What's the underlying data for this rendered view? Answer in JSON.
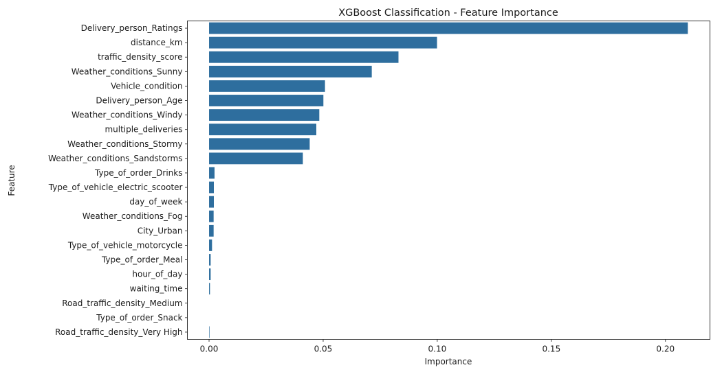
{
  "chart_data": {
    "type": "bar",
    "orientation": "horizontal",
    "title": "XGBoost Classification - Feature Importance",
    "xlabel": "Importance",
    "ylabel": "Feature",
    "xlim": [
      -0.0095,
      0.2195
    ],
    "xticks": [
      0.0,
      0.05,
      0.1,
      0.15,
      0.2
    ],
    "xtick_labels": [
      "0.00",
      "0.05",
      "0.10",
      "0.15",
      "0.20"
    ],
    "grid": false,
    "bar_color": "#2e6e9e",
    "categories": [
      "Delivery_person_Ratings",
      "distance_km",
      "traffic_density_score",
      "Weather_conditions_Sunny",
      "Vehicle_condition",
      "Delivery_person_Age",
      "Weather_conditions_Windy",
      "multiple_deliveries",
      "Weather_conditions_Stormy",
      "Weather_conditions_Sandstorms",
      "Type_of_order_Drinks",
      "Type_of_vehicle_electric_scooter",
      "day_of_week",
      "Weather_conditions_Fog",
      "City_Urban",
      "Type_of_vehicle_motorcycle",
      "Type_of_order_Meal",
      "hour_of_day",
      "waiting_time",
      "Road_traffic_density_Medium",
      "Type_of_order_Snack",
      "Road_traffic_density_Very High"
    ],
    "values": [
      0.2098,
      0.0999,
      0.083,
      0.0713,
      0.0508,
      0.0501,
      0.0483,
      0.047,
      0.0441,
      0.0411,
      0.0024,
      0.0021,
      0.0021,
      0.002,
      0.002,
      0.0013,
      0.0007,
      0.0007,
      0.0004,
      0.0,
      0.0,
      0.0002
    ]
  }
}
